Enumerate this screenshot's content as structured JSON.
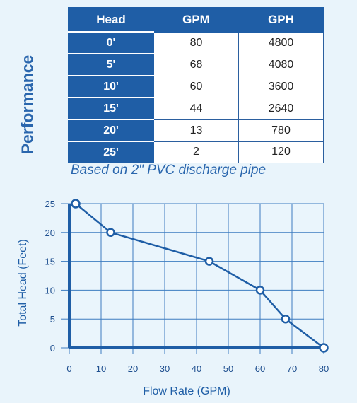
{
  "section_label": "Performance",
  "table": {
    "headers": [
      "Head",
      "GPM",
      "GPH"
    ],
    "rows": [
      [
        "0'",
        "80",
        "4800"
      ],
      [
        "5'",
        "68",
        "4080"
      ],
      [
        "10'",
        "60",
        "3600"
      ],
      [
        "15'",
        "44",
        "2640"
      ],
      [
        "20'",
        "13",
        "780"
      ],
      [
        "25'",
        "2",
        "120"
      ]
    ]
  },
  "note": "Based on 2\" PVC discharge pipe",
  "chart_data": {
    "type": "line",
    "xlabel": "Flow Rate (GPM)",
    "ylabel": "Total Head (Feet)",
    "xlim": [
      0,
      80
    ],
    "ylim": [
      0,
      25
    ],
    "xticks": [
      0,
      10,
      20,
      30,
      40,
      50,
      60,
      70,
      80
    ],
    "yticks": [
      0,
      5,
      10,
      15,
      20,
      25
    ],
    "grid": true,
    "series": [
      {
        "x": [
          2,
          13,
          44,
          60,
          68,
          80
        ],
        "y": [
          25,
          20,
          15,
          10,
          5,
          0
        ]
      }
    ],
    "colors": {
      "line": "#1f5ea6",
      "grid": "#3d7cc0",
      "axis": "#1f5ea6"
    }
  }
}
